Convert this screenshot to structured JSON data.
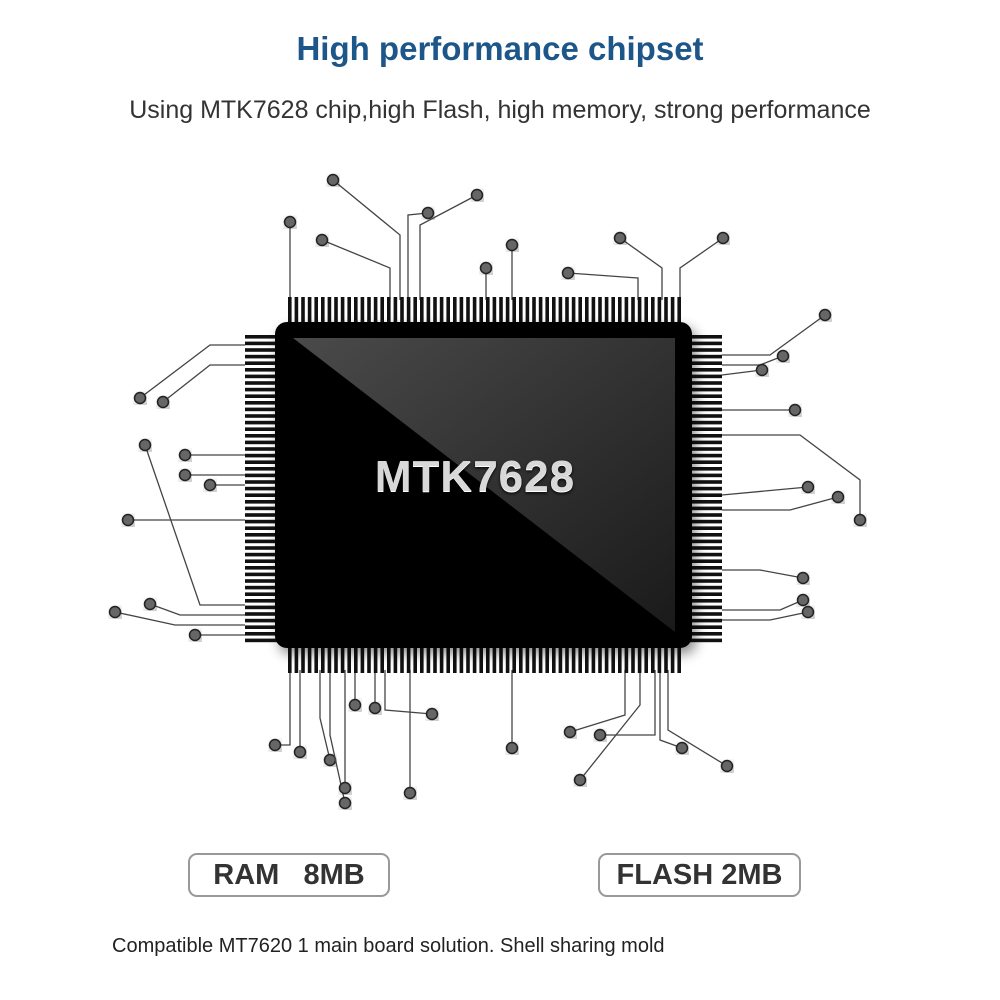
{
  "header": {
    "title": "High performance chipset",
    "subtitle": "Using MTK7628 chip,high Flash, high memory, strong performance"
  },
  "chip": {
    "label": "MTK7628"
  },
  "specs": [
    {
      "label": "RAM   8MB"
    },
    {
      "label": "FLASH 2MB"
    }
  ],
  "footer": {
    "text": "Compatible MT7620 1 main board solution. Shell sharing mold"
  },
  "colors": {
    "title": "#1d5689",
    "chip": "#050505",
    "trace": "#444444"
  }
}
